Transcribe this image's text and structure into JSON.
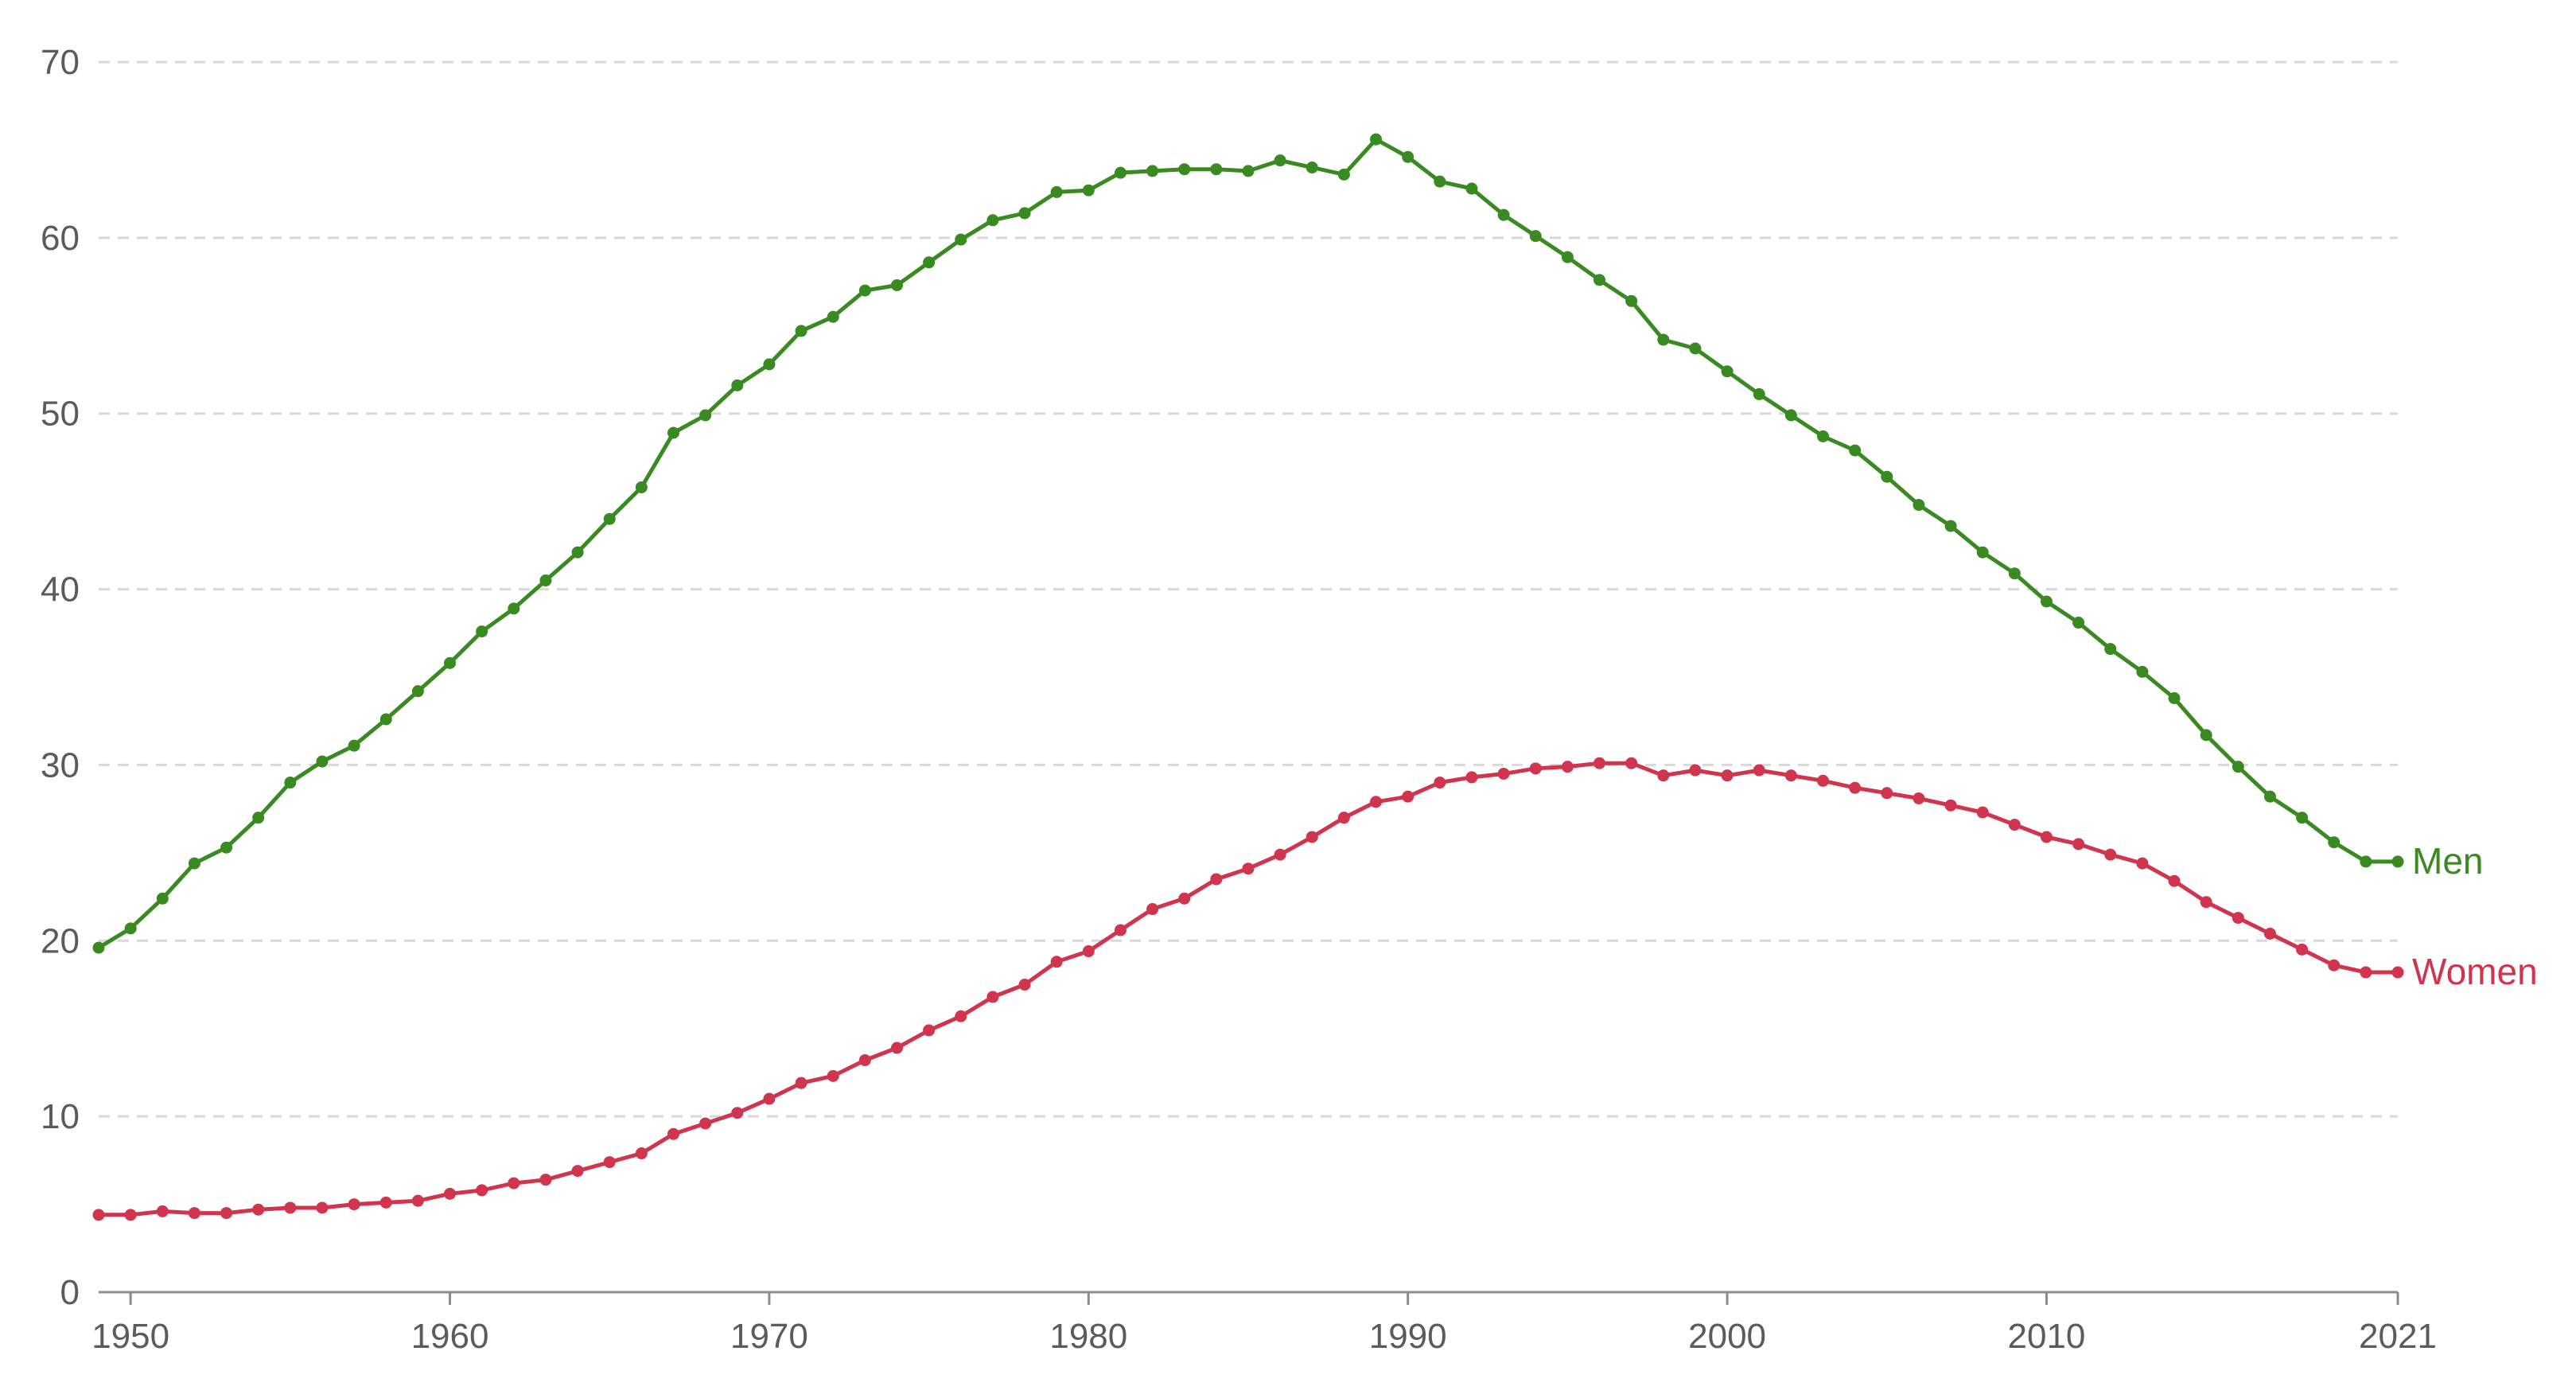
{
  "chart_data": {
    "type": "line",
    "title": "",
    "xlabel": "",
    "ylabel": "",
    "xlim": [
      1949,
      2021
    ],
    "ylim": [
      0,
      70
    ],
    "grid": true,
    "yticks": [
      0,
      10,
      20,
      30,
      40,
      50,
      60,
      70
    ],
    "xticks": [
      1950,
      1960,
      1970,
      1980,
      1990,
      2000,
      2010,
      2021
    ],
    "ytick_labels": [
      "0",
      "10",
      "20",
      "30",
      "40",
      "50",
      "60",
      "70"
    ],
    "xtick_labels": [
      "1950",
      "1960",
      "1970",
      "1980",
      "1990",
      "2000",
      "2010",
      "2021"
    ],
    "x": [
      1949,
      1950,
      1951,
      1952,
      1953,
      1954,
      1955,
      1956,
      1957,
      1958,
      1959,
      1960,
      1961,
      1962,
      1963,
      1964,
      1965,
      1966,
      1967,
      1968,
      1969,
      1970,
      1971,
      1972,
      1973,
      1974,
      1975,
      1976,
      1977,
      1978,
      1979,
      1980,
      1981,
      1982,
      1983,
      1984,
      1985,
      1986,
      1987,
      1988,
      1989,
      1990,
      1991,
      1992,
      1993,
      1994,
      1995,
      1996,
      1997,
      1998,
      1999,
      2000,
      2001,
      2002,
      2003,
      2004,
      2005,
      2006,
      2007,
      2008,
      2009,
      2010,
      2011,
      2012,
      2013,
      2014,
      2015,
      2016,
      2017,
      2018,
      2019,
      2020,
      2021
    ],
    "series": [
      {
        "name": "Men",
        "color": "#3a8a22",
        "values": [
          19.6,
          20.7,
          22.4,
          24.4,
          25.3,
          27.0,
          29.0,
          30.2,
          31.1,
          32.6,
          34.2,
          35.8,
          37.6,
          38.9,
          40.5,
          42.1,
          44.0,
          45.8,
          48.9,
          49.9,
          51.6,
          52.8,
          54.7,
          55.5,
          57.0,
          57.3,
          58.6,
          59.9,
          61.0,
          61.4,
          62.6,
          62.7,
          63.7,
          63.8,
          63.9,
          63.9,
          63.8,
          64.4,
          64.0,
          63.6,
          65.6,
          64.6,
          63.2,
          62.8,
          61.3,
          60.1,
          58.9,
          57.6,
          56.4,
          54.2,
          53.7,
          52.4,
          51.1,
          49.9,
          48.7,
          47.9,
          46.4,
          44.8,
          43.6,
          42.1,
          40.9,
          39.3,
          38.1,
          36.6,
          35.3,
          33.8,
          31.7,
          29.9,
          28.2,
          27.0,
          25.6,
          24.5,
          24.5
        ]
      },
      {
        "name": "Women",
        "color": "#d1354e",
        "values": [
          4.4,
          4.4,
          4.6,
          4.5,
          4.5,
          4.7,
          4.8,
          4.8,
          5.0,
          5.1,
          5.2,
          5.6,
          5.8,
          6.2,
          6.4,
          6.9,
          7.4,
          7.9,
          9.0,
          9.6,
          10.2,
          11.0,
          11.9,
          12.3,
          13.2,
          13.9,
          14.9,
          15.7,
          16.8,
          17.5,
          18.8,
          19.4,
          20.6,
          21.8,
          22.4,
          23.5,
          24.1,
          24.9,
          25.9,
          27.0,
          27.9,
          28.2,
          29.0,
          29.3,
          29.5,
          29.8,
          29.9,
          30.1,
          30.1,
          29.4,
          29.7,
          29.4,
          29.7,
          29.4,
          29.1,
          28.7,
          28.4,
          28.1,
          27.7,
          27.3,
          26.6,
          25.9,
          25.5,
          24.9,
          24.4,
          23.4,
          22.2,
          21.3,
          20.4,
          19.5,
          18.6,
          18.2,
          18.2
        ]
      }
    ],
    "legend": "inline-right"
  }
}
